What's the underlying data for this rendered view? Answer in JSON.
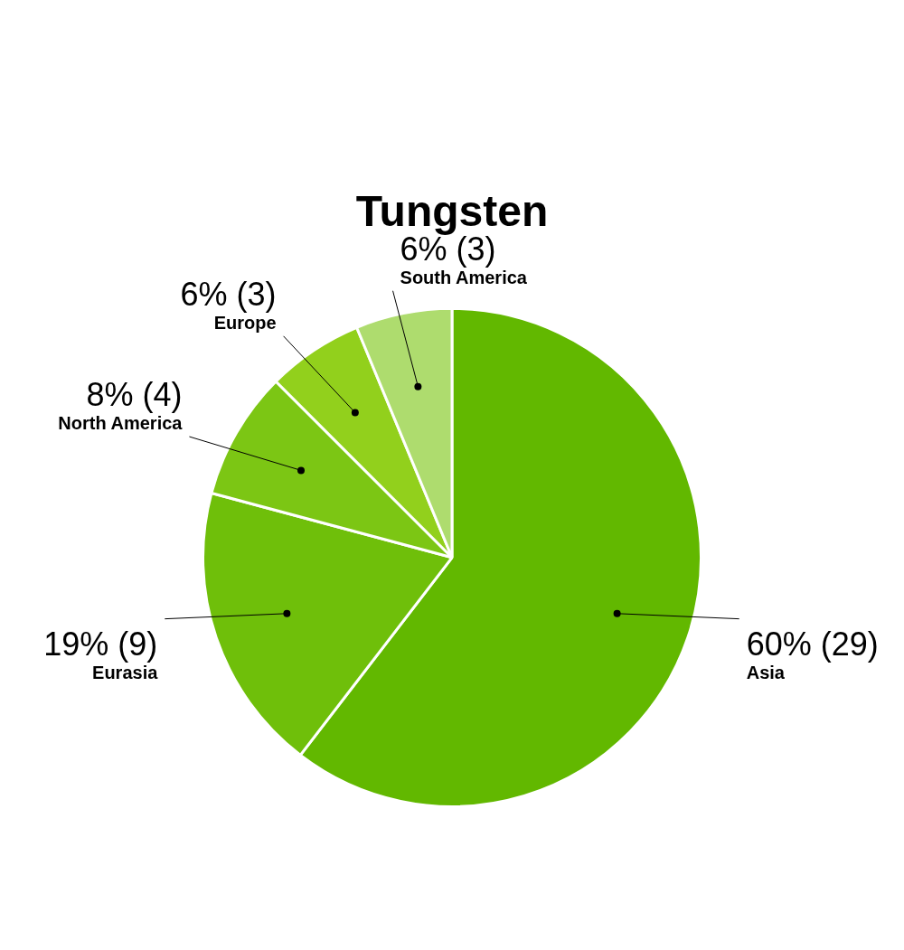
{
  "chart_data": {
    "type": "pie",
    "title": "Tungsten",
    "categories": [
      "Asia",
      "Eurasia",
      "North America",
      "Europe",
      "South America"
    ],
    "values": [
      29,
      9,
      4,
      3,
      3
    ],
    "value_labels": [
      "60% (29)",
      "19% (9)",
      "8% (4)",
      "6% (3)",
      "6% (3)"
    ],
    "colors": [
      "#62b800",
      "#6fbf0a",
      "#7cc614",
      "#92d01c",
      "#aedc6e"
    ],
    "legend": false
  }
}
